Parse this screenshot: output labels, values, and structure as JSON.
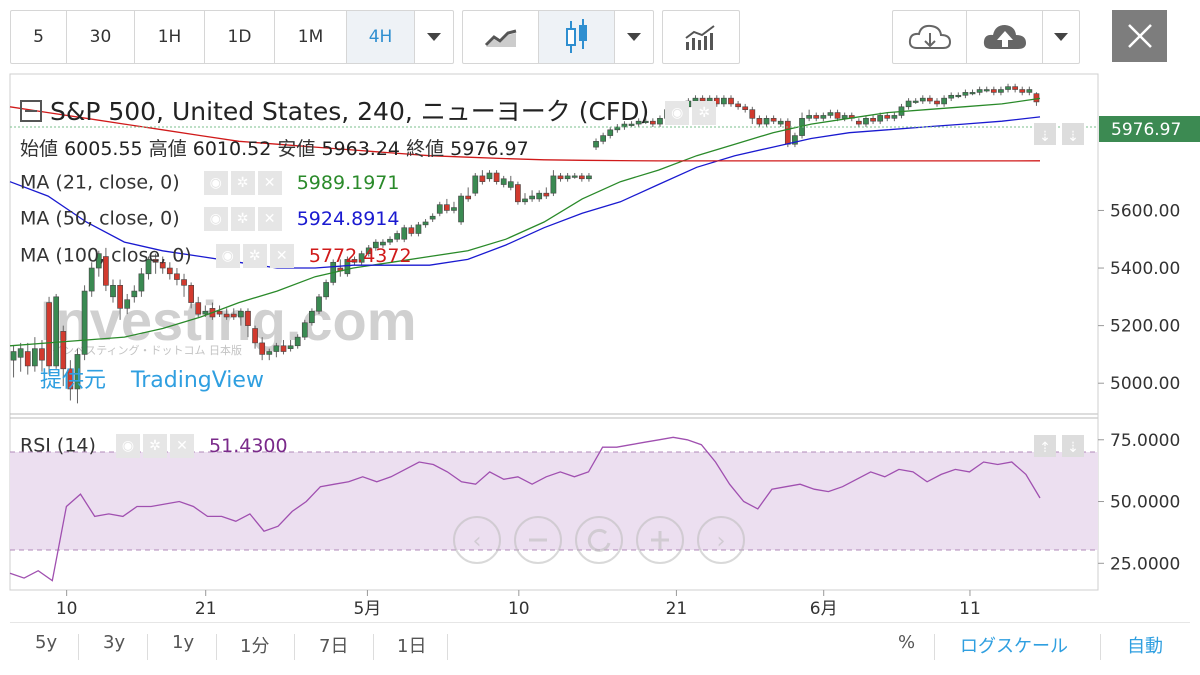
{
  "toolbar": {
    "intervals": [
      "5",
      "30",
      "1H",
      "1D",
      "1M",
      "4H"
    ],
    "active_interval": "4H"
  },
  "colors": {
    "up": "#3a8a52",
    "down": "#d23a2e",
    "ma21": "#2a8a2a",
    "ma50": "#1a1ad0",
    "ma100": "#d01a1a",
    "rsi": "#a050b0",
    "price_tag": "#3c8a52",
    "link": "#2f9fe0"
  },
  "header": {
    "title": "S&P 500, United States, 240, ニューヨーク (CFD)",
    "ohlc": [
      {
        "label": "始値",
        "value": "6005.55"
      },
      {
        "label": "高値",
        "value": "6010.52"
      },
      {
        "label": "安値",
        "value": "5963.24"
      },
      {
        "label": "終値",
        "value": "5976.97"
      }
    ],
    "ma21_label": "MA (21, close, 0)",
    "ma21_value": "5989.1971",
    "ma50_label": "MA (50, close, 0)",
    "ma50_value": "5924.8914",
    "ma100_label": "MA (100, close, 0)",
    "ma100_value": "5772.4372",
    "rsi_label": "RSI (14)",
    "rsi_value": "51.4300"
  },
  "watermark": {
    "logo": "Investing.com",
    "logo_sub": "インベスティング・ドットコム 日本版",
    "provided_by": "提供元",
    "provider": "TradingView"
  },
  "price_tag": "5976.97",
  "x_ticks": [
    "10",
    "21",
    "5月",
    "10",
    "21",
    "6月",
    "11"
  ],
  "bottom_bar": {
    "ranges": [
      "5y",
      "3y",
      "1y",
      "1分",
      "7日",
      "1日"
    ],
    "percent": "%",
    "log_scale": "ログスケール",
    "auto": "自動"
  },
  "chart_data": [
    {
      "type": "candlestick",
      "title": "S&P 500, United States, 240, ニューヨーク (CFD)",
      "y_ticks": [
        5000,
        5200,
        5400,
        5600
      ],
      "ylim": [
        4900,
        6060
      ],
      "x_ticks": [
        "10",
        "21",
        "5月",
        "10",
        "21",
        "6月",
        "11"
      ],
      "last_price": 5976.97,
      "candles": [
        [
          5080,
          5110,
          5020,
          5130
        ],
        [
          5090,
          5120,
          5040,
          5140
        ],
        [
          5110,
          5060,
          5030,
          5140
        ],
        [
          5060,
          5120,
          5040,
          5160
        ],
        [
          5120,
          5080,
          5040,
          5150
        ],
        [
          5280,
          5060,
          5030,
          5300
        ],
        [
          5060,
          5300,
          5050,
          5310
        ],
        [
          5180,
          5050,
          4990,
          5200
        ],
        [
          5050,
          4980,
          4940,
          5080
        ],
        [
          4980,
          5100,
          4930,
          5120
        ],
        [
          5100,
          5320,
          5080,
          5340
        ],
        [
          5320,
          5400,
          5300,
          5420
        ],
        [
          5400,
          5450,
          5370,
          5460
        ],
        [
          5440,
          5340,
          5320,
          5470
        ],
        [
          5300,
          5340,
          5280,
          5360
        ],
        [
          5340,
          5260,
          5220,
          5360
        ],
        [
          5260,
          5290,
          5240,
          5310
        ],
        [
          5300,
          5320,
          5280,
          5340
        ],
        [
          5320,
          5380,
          5300,
          5400
        ],
        [
          5380,
          5430,
          5360,
          5440
        ],
        [
          5430,
          5420,
          5380,
          5450
        ],
        [
          5420,
          5400,
          5380,
          5440
        ],
        [
          5400,
          5380,
          5360,
          5420
        ],
        [
          5380,
          5360,
          5340,
          5400
        ],
        [
          5360,
          5340,
          5300,
          5380
        ],
        [
          5340,
          5280,
          5260,
          5350
        ],
        [
          5280,
          5240,
          5230,
          5300
        ],
        [
          5240,
          5250,
          5230,
          5270
        ],
        [
          5260,
          5230,
          5220,
          5280
        ],
        [
          5250,
          5240,
          5230,
          5270
        ],
        [
          5240,
          5230,
          5220,
          5260
        ],
        [
          5240,
          5230,
          5220,
          5260
        ],
        [
          5230,
          5250,
          5200,
          5260
        ],
        [
          5250,
          5200,
          5160,
          5260
        ],
        [
          5190,
          5140,
          5120,
          5200
        ],
        [
          5140,
          5100,
          5080,
          5160
        ],
        [
          5100,
          5110,
          5080,
          5120
        ],
        [
          5110,
          5130,
          5090,
          5140
        ],
        [
          5130,
          5110,
          5100,
          5150
        ],
        [
          5120,
          5130,
          5110,
          5150
        ],
        [
          5130,
          5160,
          5120,
          5170
        ],
        [
          5160,
          5210,
          5150,
          5220
        ],
        [
          5210,
          5250,
          5200,
          5260
        ],
        [
          5250,
          5300,
          5240,
          5310
        ],
        [
          5300,
          5350,
          5290,
          5360
        ],
        [
          5350,
          5420,
          5340,
          5430
        ],
        [
          5400,
          5390,
          5370,
          5430
        ],
        [
          5380,
          5430,
          5370,
          5440
        ],
        [
          5430,
          5420,
          5410,
          5440
        ],
        [
          5420,
          5450,
          5410,
          5460
        ],
        [
          5450,
          5470,
          5440,
          5480
        ],
        [
          5470,
          5490,
          5460,
          5500
        ],
        [
          5480,
          5490,
          5470,
          5500
        ],
        [
          5490,
          5500,
          5480,
          5510
        ],
        [
          5500,
          5520,
          5490,
          5530
        ],
        [
          5500,
          5540,
          5490,
          5550
        ],
        [
          5540,
          5520,
          5510,
          5550
        ],
        [
          5520,
          5550,
          5510,
          5560
        ],
        [
          5550,
          5560,
          5540,
          5570
        ],
        [
          5570,
          5580,
          5560,
          5590
        ],
        [
          5590,
          5620,
          5580,
          5630
        ],
        [
          5620,
          5600,
          5590,
          5640
        ],
        [
          5600,
          5610,
          5590,
          5630
        ],
        [
          5560,
          5650,
          5550,
          5660
        ],
        [
          5650,
          5640,
          5630,
          5680
        ],
        [
          5660,
          5720,
          5650,
          5730
        ],
        [
          5720,
          5700,
          5690,
          5740
        ],
        [
          5710,
          5730,
          5700,
          5740
        ],
        [
          5730,
          5700,
          5690,
          5740
        ],
        [
          5690,
          5710,
          5680,
          5720
        ],
        [
          5680,
          5700,
          5670,
          5720
        ],
        [
          5690,
          5630,
          5620,
          5700
        ],
        [
          5630,
          5640,
          5620,
          5660
        ],
        [
          5640,
          5650,
          5630,
          5670
        ],
        [
          5640,
          5660,
          5630,
          5670
        ],
        [
          5660,
          5650,
          5640,
          5680
        ],
        [
          5660,
          5720,
          5650,
          5740
        ],
        [
          5720,
          5710,
          5700,
          5730
        ],
        [
          5710,
          5720,
          5700,
          5730
        ],
        [
          5720,
          5720,
          5710,
          5730
        ],
        [
          5720,
          5710,
          5700,
          5730
        ],
        [
          5710,
          5720,
          5700,
          5730
        ],
        [
          5820,
          5840,
          5810,
          5850
        ],
        [
          5840,
          5860,
          5830,
          5870
        ],
        [
          5860,
          5880,
          5850,
          5890
        ],
        [
          5880,
          5890,
          5870,
          5900
        ],
        [
          5890,
          5900,
          5880,
          5910
        ],
        [
          5900,
          5900,
          5890,
          5910
        ],
        [
          5900,
          5910,
          5890,
          5920
        ],
        [
          5910,
          5910,
          5900,
          5920
        ],
        [
          5910,
          5900,
          5890,
          5920
        ],
        [
          5900,
          5920,
          5890,
          5930
        ],
        [
          5920,
          5950,
          5910,
          5960
        ],
        [
          5950,
          5970,
          5940,
          5980
        ],
        [
          5970,
          5960,
          5950,
          5980
        ],
        [
          5960,
          5980,
          5950,
          5990
        ],
        [
          5980,
          5990,
          5970,
          6000
        ],
        [
          5990,
          5980,
          5970,
          6000
        ],
        [
          5980,
          5990,
          5970,
          6000
        ],
        [
          5990,
          5970,
          5960,
          6000
        ],
        [
          5970,
          5990,
          5960,
          6000
        ],
        [
          5990,
          5970,
          5960,
          6000
        ],
        [
          5970,
          5960,
          5950,
          5980
        ],
        [
          5960,
          5950,
          5940,
          5970
        ],
        [
          5950,
          5920,
          5900,
          5960
        ],
        [
          5920,
          5900,
          5890,
          5930
        ],
        [
          5900,
          5920,
          5890,
          5930
        ],
        [
          5920,
          5910,
          5900,
          5930
        ],
        [
          5900,
          5910,
          5890,
          5920
        ],
        [
          5910,
          5830,
          5820,
          5920
        ],
        [
          5830,
          5860,
          5820,
          5870
        ],
        [
          5860,
          5920,
          5850,
          5940
        ],
        [
          5920,
          5930,
          5910,
          5950
        ],
        [
          5930,
          5920,
          5910,
          5940
        ],
        [
          5920,
          5930,
          5910,
          5940
        ],
        [
          5930,
          5940,
          5920,
          5950
        ],
        [
          5940,
          5920,
          5910,
          5950
        ],
        [
          5920,
          5930,
          5910,
          5940
        ],
        [
          5930,
          5920,
          5910,
          5940
        ],
        [
          5910,
          5900,
          5890,
          5920
        ],
        [
          5900,
          5920,
          5890,
          5930
        ],
        [
          5920,
          5910,
          5900,
          5930
        ],
        [
          5910,
          5930,
          5900,
          5940
        ],
        [
          5930,
          5920,
          5910,
          5940
        ],
        [
          5920,
          5930,
          5910,
          5940
        ],
        [
          5930,
          5960,
          5920,
          5970
        ],
        [
          5960,
          5980,
          5950,
          5990
        ],
        [
          5980,
          5980,
          5970,
          5990
        ],
        [
          5980,
          5990,
          5970,
          6000
        ],
        [
          5990,
          5980,
          5970,
          6000
        ],
        [
          5980,
          5970,
          5960,
          5990
        ],
        [
          5970,
          5990,
          5960,
          6000
        ],
        [
          5990,
          6000,
          5980,
          6010
        ],
        [
          6000,
          6000,
          5990,
          6010
        ],
        [
          6000,
          6010,
          5990,
          6020
        ],
        [
          6010,
          6010,
          6000,
          6020
        ],
        [
          6010,
          6020,
          6000,
          6030
        ],
        [
          6020,
          6020,
          6010,
          6030
        ],
        [
          6020,
          6010,
          6000,
          6030
        ],
        [
          6010,
          6020,
          6000,
          6030
        ],
        [
          6020,
          6030,
          6010,
          6040
        ],
        [
          6030,
          6020,
          6010,
          6040
        ],
        [
          6020,
          6010,
          6000,
          6030
        ],
        [
          6010,
          6020,
          6000,
          6030
        ],
        [
          6005.55,
          5976.97,
          5963.24,
          6010.52
        ]
      ],
      "series": [
        {
          "name": "MA (21, close, 0)",
          "values": [
            5130,
            5140,
            5150,
            5160,
            5190,
            5230,
            5280,
            5320,
            5370,
            5400,
            5420,
            5440,
            5460,
            5500,
            5560,
            5640,
            5700,
            5740,
            5790,
            5830,
            5870,
            5900,
            5920,
            5940,
            5950,
            5960,
            5970,
            5989.1971
          ]
        },
        {
          "name": "MA (50, close, 0)",
          "values": [
            5700,
            5650,
            5560,
            5490,
            5460,
            5440,
            5420,
            5400,
            5400,
            5410,
            5410,
            5410,
            5430,
            5480,
            5540,
            5590,
            5630,
            5690,
            5750,
            5790,
            5820,
            5850,
            5870,
            5880,
            5890,
            5900,
            5910,
            5924.8914
          ]
        },
        {
          "name": "MA (100, close, 0)",
          "values": [
            5960,
            5940,
            5920,
            5900,
            5880,
            5860,
            5840,
            5830,
            5820,
            5810,
            5800,
            5790,
            5785,
            5780,
            5776,
            5774,
            5773,
            5772,
            5772,
            5772,
            5772,
            5772,
            5772,
            5772,
            5772,
            5772,
            5772,
            5772.4372
          ]
        }
      ]
    },
    {
      "type": "line",
      "title": "RSI (14)",
      "y_ticks": [
        25,
        50,
        75
      ],
      "ylim": [
        15,
        83
      ],
      "bands": [
        30,
        70
      ],
      "series": [
        {
          "name": "RSI (14)",
          "values": [
            21,
            19,
            22,
            18,
            48,
            53,
            44,
            45,
            44,
            48,
            48,
            49,
            50,
            48,
            44,
            44,
            42,
            45,
            38,
            40,
            46,
            50,
            56,
            57,
            58,
            60,
            58,
            60,
            63,
            66,
            65,
            62,
            58,
            57,
            62,
            59,
            60,
            57,
            60,
            62,
            60,
            62,
            72,
            72,
            73,
            74,
            75,
            76,
            75,
            73,
            66,
            57,
            50,
            47,
            55,
            56,
            57,
            55,
            54,
            56,
            59,
            62,
            60,
            63,
            62,
            58,
            61,
            63,
            62,
            66,
            65,
            66,
            61,
            51.43
          ]
        }
      ]
    }
  ]
}
